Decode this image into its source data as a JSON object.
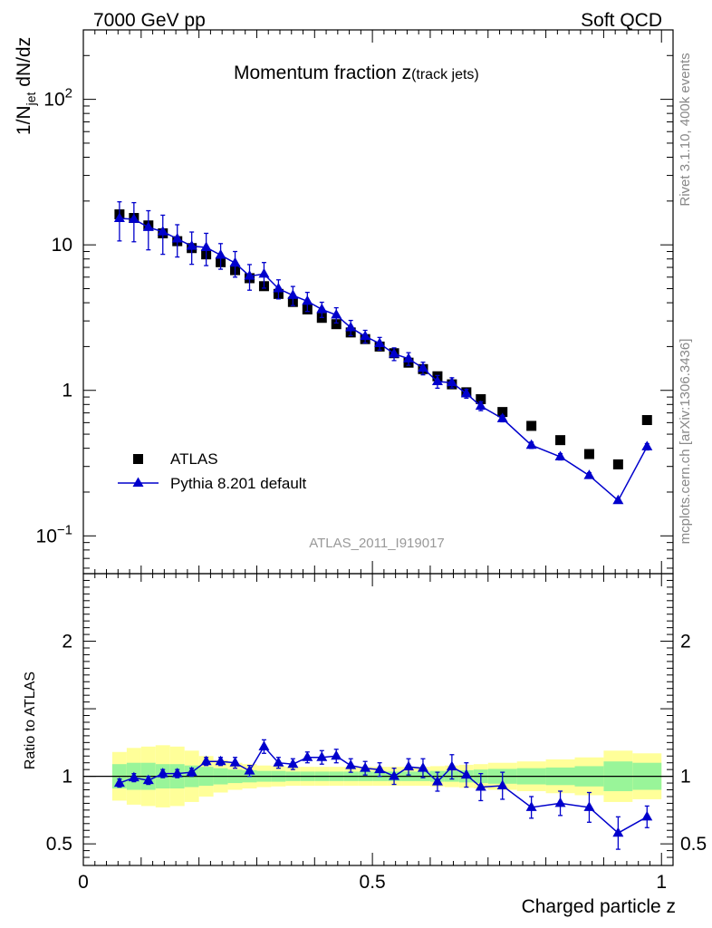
{
  "header": {
    "left": "7000 GeV pp",
    "right": "Soft QCD"
  },
  "side_labels": {
    "rivet": "Rivet 3.1.10,  400k events",
    "mcplots": "mcplots.cern.ch [arXiv:1306.3436]"
  },
  "chart_data": [
    {
      "type": "scatter",
      "panel": "main",
      "title": "Momentum fraction z",
      "title_suffix": "(track jets)",
      "ylabel_main": "1/N",
      "ylabel_sub": "jet",
      "ylabel_tail": " dN/dz",
      "yscale": "log",
      "xlim": [
        0,
        1.02
      ],
      "ylim": [
        0.055,
        300
      ],
      "y_ticks": [
        {
          "value": 0.1,
          "label": "10",
          "exp": "−1"
        },
        {
          "value": 1,
          "label": "1",
          "exp": ""
        },
        {
          "value": 10,
          "label": "10",
          "exp": ""
        },
        {
          "value": 100,
          "label": "10",
          "exp": "2"
        }
      ],
      "watermark": "ATLAS_2011_I919017",
      "legend": {
        "placement": "bottom-left",
        "entries": [
          "ATLAS",
          "Pythia 8.201 default"
        ]
      },
      "x": [
        0.0625,
        0.0875,
        0.1125,
        0.1375,
        0.1625,
        0.1875,
        0.2125,
        0.2375,
        0.2625,
        0.2875,
        0.3125,
        0.3375,
        0.3625,
        0.3875,
        0.4125,
        0.4375,
        0.4625,
        0.4875,
        0.5125,
        0.5375,
        0.5625,
        0.5875,
        0.6125,
        0.6375,
        0.6625,
        0.6875,
        0.725,
        0.775,
        0.825,
        0.875,
        0.925,
        0.975
      ],
      "series": [
        {
          "name": "ATLAS",
          "marker": "square",
          "color": "#000000",
          "values": [
            16.2,
            15.3,
            13.6,
            12.0,
            10.6,
            9.5,
            8.6,
            7.6,
            6.7,
            5.9,
            5.2,
            4.6,
            4.05,
            3.6,
            3.15,
            2.85,
            2.5,
            2.25,
            2.0,
            1.8,
            1.55,
            1.4,
            1.25,
            1.1,
            0.97,
            0.87,
            0.71,
            0.57,
            0.455,
            0.365,
            0.31,
            0.625
          ]
        },
        {
          "name": "Pythia 8.201 default",
          "marker": "triangle",
          "color": "#0000cc",
          "values": [
            15.2,
            15.0,
            13.2,
            12.3,
            11.0,
            9.8,
            9.6,
            8.5,
            7.5,
            6.1,
            6.3,
            5.0,
            4.5,
            4.1,
            3.6,
            3.3,
            2.7,
            2.35,
            2.1,
            1.78,
            1.65,
            1.42,
            1.15,
            1.13,
            0.95,
            0.78,
            0.64,
            0.42,
            0.35,
            0.26,
            0.175,
            0.41
          ],
          "errors": [
            0.3,
            0.3,
            0.3,
            0.3,
            0.25,
            0.25,
            0.25,
            0.2,
            0.2,
            0.2,
            0.2,
            0.15,
            0.15,
            0.15,
            0.12,
            0.12,
            0.12,
            0.1,
            0.1,
            0.1,
            0.1,
            0.1,
            0.1,
            0.08,
            0.07,
            0.07,
            0.05,
            0.05,
            0.05,
            0.045,
            0.035,
            0.05
          ]
        }
      ]
    },
    {
      "type": "line",
      "panel": "ratio",
      "ylabel": "Ratio to ATLAS",
      "xlabel": "Charged particle z",
      "ylim": [
        0.34,
        2.5
      ],
      "y_ticks": [
        0.5,
        1,
        2
      ],
      "x_ticks": [
        {
          "value": 0,
          "label": "0"
        },
        {
          "value": 0.5,
          "label": "0.5"
        },
        {
          "value": 1,
          "label": "1"
        }
      ],
      "reference_line": 1,
      "band_edges": [
        0.05,
        0.075,
        0.1,
        0.125,
        0.15,
        0.175,
        0.2,
        0.225,
        0.25,
        0.275,
        0.3,
        0.325,
        0.35,
        0.375,
        0.4,
        0.425,
        0.45,
        0.475,
        0.5,
        0.525,
        0.55,
        0.575,
        0.6,
        0.625,
        0.65,
        0.675,
        0.7,
        0.75,
        0.8,
        0.85,
        0.9,
        0.95,
        1.0
      ],
      "band_inner": [
        0.09,
        0.1,
        0.1,
        0.09,
        0.09,
        0.08,
        0.07,
        0.06,
        0.05,
        0.045,
        0.04,
        0.04,
        0.035,
        0.035,
        0.035,
        0.035,
        0.035,
        0.035,
        0.035,
        0.035,
        0.035,
        0.035,
        0.04,
        0.04,
        0.045,
        0.05,
        0.055,
        0.06,
        0.065,
        0.075,
        0.11,
        0.1
      ],
      "band_outer": [
        0.18,
        0.21,
        0.22,
        0.23,
        0.22,
        0.19,
        0.15,
        0.12,
        0.1,
        0.09,
        0.08,
        0.075,
        0.07,
        0.07,
        0.07,
        0.07,
        0.07,
        0.07,
        0.07,
        0.07,
        0.07,
        0.07,
        0.075,
        0.08,
        0.085,
        0.09,
        0.1,
        0.11,
        0.125,
        0.14,
        0.19,
        0.17
      ],
      "series": [
        {
          "name": "Pythia 8.201 default",
          "color": "#0000cc",
          "values": [
            0.95,
            0.99,
            0.97,
            1.02,
            1.02,
            1.03,
            1.11,
            1.11,
            1.1,
            1.04,
            1.22,
            1.1,
            1.09,
            1.14,
            1.14,
            1.15,
            1.08,
            1.06,
            1.05,
            1.0,
            1.07,
            1.06,
            0.96,
            1.07,
            1.01,
            0.92,
            0.93,
            0.77,
            0.8,
            0.77,
            0.58,
            0.7
          ],
          "errors": [
            0.03,
            0.03,
            0.03,
            0.03,
            0.03,
            0.03,
            0.03,
            0.03,
            0.04,
            0.04,
            0.05,
            0.04,
            0.04,
            0.04,
            0.05,
            0.05,
            0.05,
            0.05,
            0.05,
            0.06,
            0.06,
            0.07,
            0.07,
            0.09,
            0.09,
            0.1,
            0.1,
            0.08,
            0.09,
            0.11,
            0.12,
            0.08
          ]
        }
      ]
    }
  ]
}
